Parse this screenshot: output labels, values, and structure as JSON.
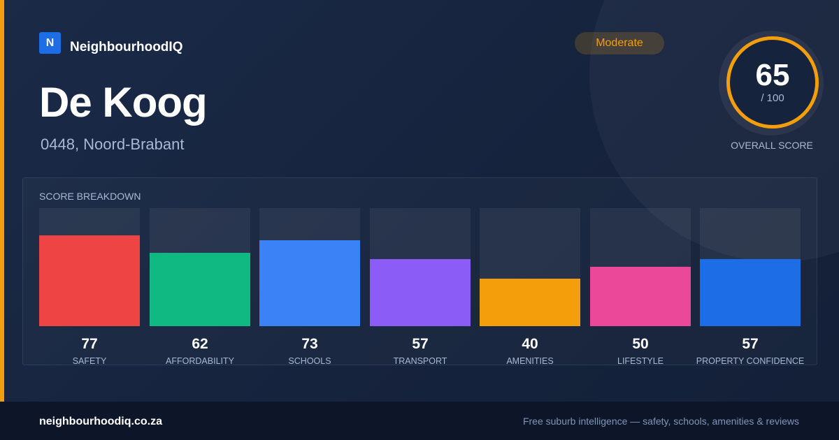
{
  "brand": {
    "logo_letter": "N",
    "name": "NeighbourhoodIQ",
    "logo_color": "#1d6ee6"
  },
  "suburb": {
    "name": "De Koog",
    "location": "0448, Noord-Brabant"
  },
  "rating": {
    "label": "Moderate",
    "color": "#f59e0b"
  },
  "overall": {
    "score": "65",
    "max": "/ 100",
    "caption": "OVERALL SCORE"
  },
  "breakdown": {
    "title": "SCORE BREAKDOWN",
    "max": 100,
    "items": [
      {
        "label": "SAFETY",
        "value": 77,
        "color": "#ef4444"
      },
      {
        "label": "AFFORDABILITY",
        "value": 62,
        "color": "#10b981"
      },
      {
        "label": "SCHOOLS",
        "value": 73,
        "color": "#3b82f6"
      },
      {
        "label": "TRANSPORT",
        "value": 57,
        "color": "#8b5cf6"
      },
      {
        "label": "AMENITIES",
        "value": 40,
        "color": "#f59e0b"
      },
      {
        "label": "LIFESTYLE",
        "value": 50,
        "color": "#ec4899"
      },
      {
        "label": "PROPERTY CONFIDENCE",
        "value": 57,
        "color": "#1d6ee6"
      }
    ]
  },
  "footer": {
    "url": "neighbourhoodiq.co.za",
    "tagline": "Free suburb intelligence — safety, schools, amenities & reviews"
  }
}
